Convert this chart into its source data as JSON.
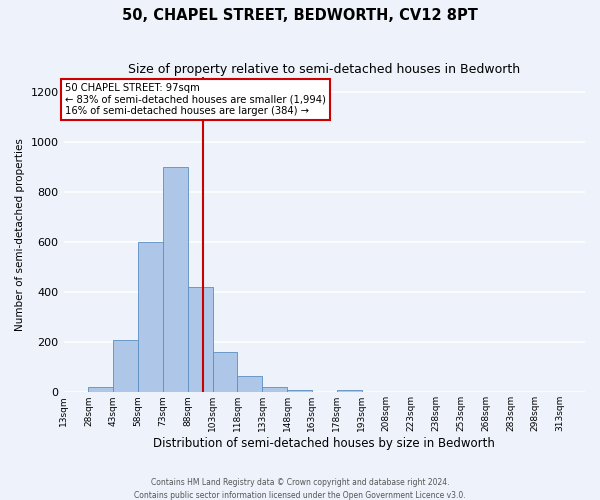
{
  "title": "50, CHAPEL STREET, BEDWORTH, CV12 8PT",
  "subtitle": "Size of property relative to semi-detached houses in Bedworth",
  "xlabel": "Distribution of semi-detached houses by size in Bedworth",
  "ylabel": "Number of semi-detached properties",
  "footer_line1": "Contains HM Land Registry data © Crown copyright and database right 2024.",
  "footer_line2": "Contains public sector information licensed under the Open Government Licence v3.0.",
  "bin_edges": [
    13,
    28,
    43,
    58,
    73,
    88,
    103,
    118,
    133,
    148,
    163,
    178,
    193,
    208,
    223,
    238,
    253,
    268,
    283,
    298,
    313,
    328
  ],
  "bin_labels": [
    "13sqm",
    "28sqm",
    "43sqm",
    "58sqm",
    "73sqm",
    "88sqm",
    "103sqm",
    "118sqm",
    "133sqm",
    "148sqm",
    "163sqm",
    "178sqm",
    "193sqm",
    "208sqm",
    "223sqm",
    "238sqm",
    "253sqm",
    "268sqm",
    "283sqm",
    "298sqm",
    "313sqm"
  ],
  "bar_heights": [
    0,
    20,
    210,
    600,
    900,
    420,
    160,
    65,
    20,
    10,
    0,
    10,
    0,
    0,
    0,
    0,
    0,
    0,
    0,
    0,
    0
  ],
  "bar_color": "#aec6e8",
  "bar_edge_color": "#5a8fc2",
  "property_value": 97,
  "vline_color": "#cc0000",
  "annotation_text_line1": "50 CHAPEL STREET: 97sqm",
  "annotation_text_line2": "← 83% of semi-detached houses are smaller (1,994)",
  "annotation_text_line3": "16% of semi-detached houses are larger (384) →",
  "annotation_box_color": "#ffffff",
  "annotation_box_edge_color": "#cc0000",
  "ylim": [
    0,
    1260
  ],
  "yticks": [
    0,
    200,
    400,
    600,
    800,
    1000,
    1200
  ],
  "background_color": "#edf2fb",
  "grid_color": "#ffffff",
  "title_fontsize": 10.5,
  "subtitle_fontsize": 9.0,
  "xlabel_fontsize": 8.5,
  "ylabel_fontsize": 7.5
}
